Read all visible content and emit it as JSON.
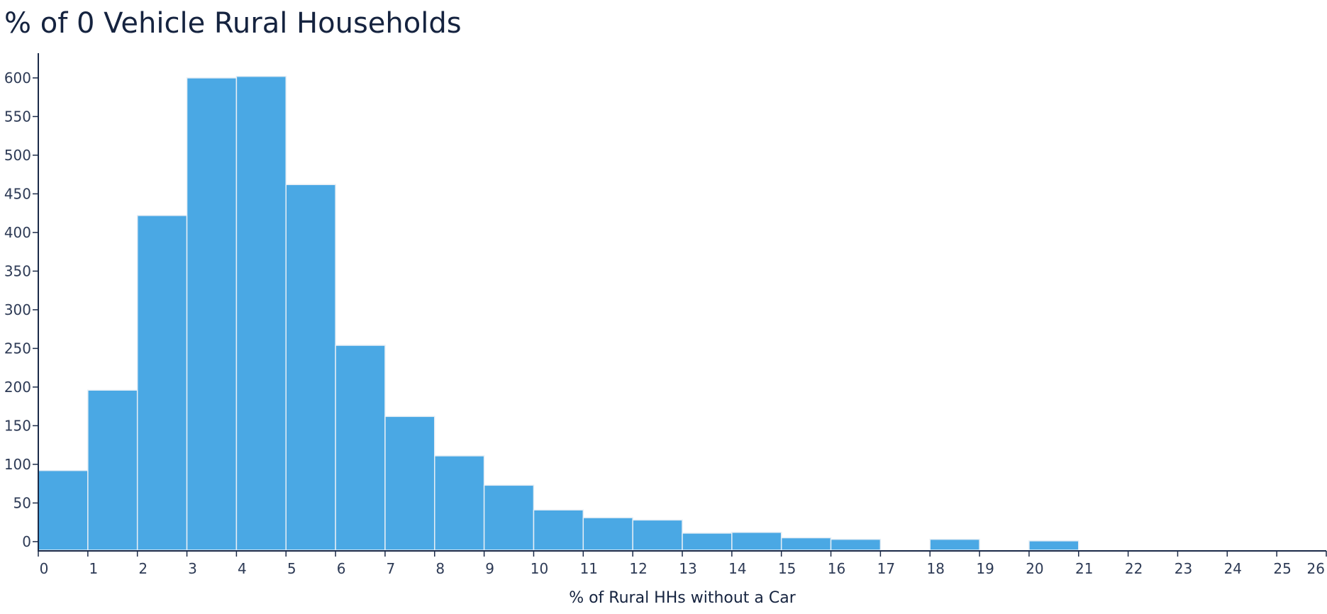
{
  "chart_data": {
    "type": "bar",
    "title": "% of 0 Vehicle Rural Households",
    "xlabel": "% of Rural HHs without a Car",
    "ylabel": "",
    "bin_edges": [
      0,
      1,
      2,
      3,
      4,
      5,
      6,
      7,
      8,
      9,
      10,
      11,
      12,
      13,
      14,
      15,
      16,
      17,
      18,
      19,
      20,
      21,
      22,
      23,
      24,
      25,
      26
    ],
    "values": [
      92,
      196,
      422,
      600,
      602,
      462,
      254,
      162,
      111,
      73,
      41,
      31,
      28,
      11,
      12,
      5,
      3,
      0,
      3,
      0,
      1,
      0,
      0,
      0,
      0,
      0
    ],
    "x_ticks": [
      "0",
      "1",
      "2",
      "3",
      "4",
      "5",
      "6",
      "7",
      "8",
      "9",
      "10",
      "11",
      "12",
      "13",
      "14",
      "15",
      "16",
      "17",
      "18",
      "19",
      "20",
      "21",
      "22",
      "23",
      "24",
      "25",
      "26"
    ],
    "y_ticks": [
      "0",
      "50",
      "100",
      "150",
      "200",
      "250",
      "300",
      "350",
      "400",
      "450",
      "500",
      "550",
      "600"
    ],
    "xlim": [
      0,
      26
    ],
    "ylim": [
      -12,
      632
    ],
    "grid": false,
    "bar_color": "#4aa8e4",
    "bar_edge_color": "#e6eef5",
    "axis_color": "#1b2a48"
  }
}
